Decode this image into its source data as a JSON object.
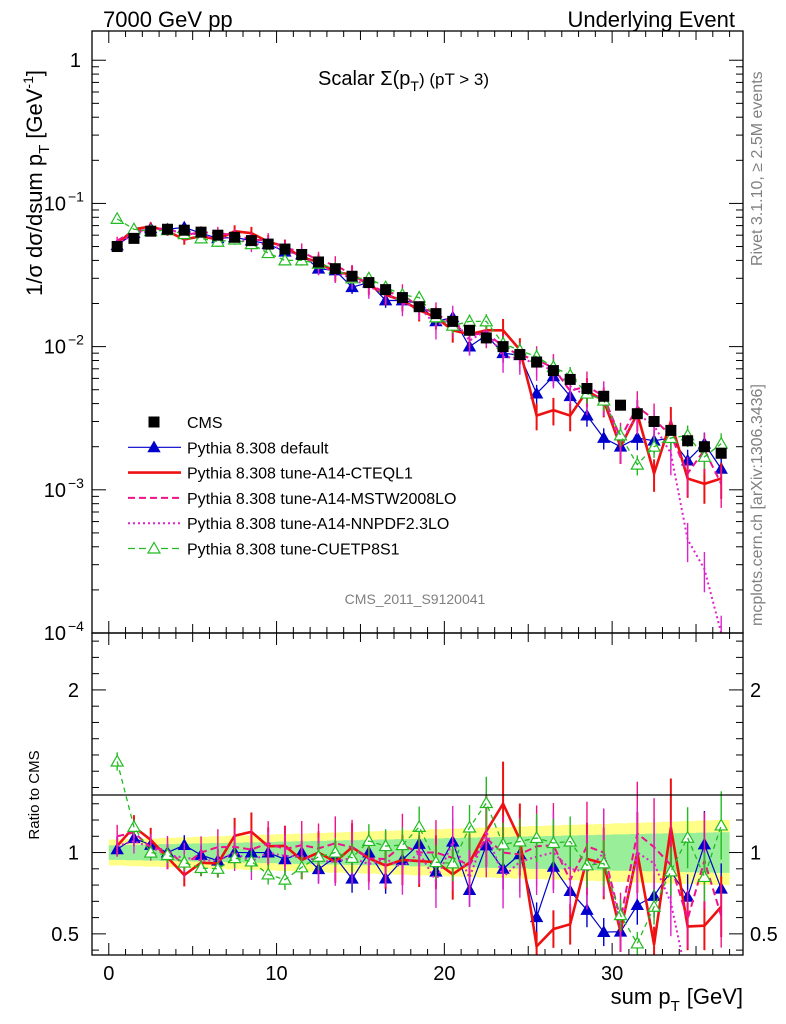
{
  "header": {
    "left": "7000 GeV pp",
    "right": "Underlying Event"
  },
  "side_text": {
    "rivet": "Rivet 3.1.10, ≥ 2.5M events",
    "mcplots": "mcplots.cern.ch [arXiv:1306.3436]"
  },
  "chart_data": {
    "type": "scatter",
    "title": "Scalar Σ(p",
    "title_sub": "T",
    "title_tail": ") (pT >  3)",
    "watermark": "CMS_2011_S9120041",
    "ylabel_main": "1/σ dσ/dsum p",
    "ylabel_main_sub": "T",
    "ylabel_main_unit": "[GeV",
    "ylabel_main_sup": "-1",
    "ylabel_ratio": "Ratio to CMS",
    "xlabel": "sum p",
    "xlabel_sub": "T",
    "xlabel_unit": "[GeV]",
    "xlim": [
      -1,
      37.8
    ],
    "ylim_main": [
      0.0001,
      1.6
    ],
    "ylim_ratio": [
      0.37,
      2.35
    ],
    "log_y_main": true,
    "x_ticks": [
      "0",
      "10",
      "20",
      "30"
    ],
    "y_ticks_main": [
      {
        "base": "1",
        "exp": ""
      },
      {
        "base": "10",
        "exp": "−1"
      },
      {
        "base": "10",
        "exp": "−2"
      },
      {
        "base": "10",
        "exp": "−3"
      },
      {
        "base": "10",
        "exp": "−4"
      }
    ],
    "y_ticks_ratio": [
      "2",
      "1",
      "0.5"
    ],
    "legend": [
      {
        "name": "CMS",
        "color": "#000000",
        "marker": "square",
        "line": "none"
      },
      {
        "name": "Pythia 8.308 default",
        "color": "#0000cc",
        "marker": "triangle",
        "line": "solid"
      },
      {
        "name": "Pythia 8.308 tune-A14-CTEQL1",
        "color": "#ee1111",
        "marker": "none",
        "line": "thick"
      },
      {
        "name": "Pythia 8.308 tune-A14-MSTW2008LO",
        "color": "#ee1188",
        "marker": "none",
        "line": "dashed"
      },
      {
        "name": "Pythia 8.308 tune-A14-NNPDF2.3LO",
        "color": "#dd22cc",
        "marker": "none",
        "line": "dotted"
      },
      {
        "name": "Pythia 8.308 tune-CUETP8S1",
        "color": "#22bb22",
        "marker": "open-triangle",
        "line": "dashed"
      }
    ],
    "x": [
      0.5,
      1.5,
      2.5,
      3.5,
      4.5,
      5.5,
      6.5,
      7.5,
      8.5,
      9.5,
      10.5,
      11.5,
      12.5,
      13.5,
      14.5,
      15.5,
      16.5,
      17.5,
      18.5,
      19.5,
      20.5,
      21.5,
      22.5,
      23.5,
      24.5,
      25.5,
      26.5,
      27.5,
      28.5,
      29.5,
      30.5,
      31.5,
      32.5,
      33.5,
      34.5,
      35.5,
      36.5
    ],
    "series": [
      {
        "name": "CMS",
        "values": [
          0.05,
          0.057,
          0.064,
          0.066,
          0.065,
          0.063,
          0.06,
          0.058,
          0.055,
          0.052,
          0.048,
          0.044,
          0.039,
          0.035,
          0.031,
          0.028,
          0.025,
          0.022,
          0.019,
          0.017,
          0.015,
          0.013,
          0.0115,
          0.01,
          0.0088,
          0.0078,
          0.0068,
          0.0059,
          0.0051,
          0.0045,
          0.0039,
          0.0034,
          0.003,
          0.0026,
          0.0022,
          0.002,
          0.0018
        ]
      },
      {
        "name": "Pythia 8.308 default",
        "values": [
          0.051,
          0.062,
          0.067,
          0.066,
          0.068,
          0.062,
          0.057,
          0.058,
          0.055,
          0.052,
          0.046,
          0.044,
          0.035,
          0.034,
          0.026,
          0.028,
          0.021,
          0.021,
          0.02,
          0.015,
          0.016,
          0.01,
          0.012,
          0.009,
          0.0087,
          0.0047,
          0.0062,
          0.0045,
          0.0033,
          0.0023,
          0.002,
          0.0023,
          0.0022,
          0.0023,
          0.0016,
          0.0021,
          0.0014
        ]
      },
      {
        "name": "Pythia 8.308 tune-A14-CTEQL1",
        "values": [
          0.052,
          0.066,
          0.069,
          0.064,
          0.056,
          0.059,
          0.056,
          0.064,
          0.062,
          0.054,
          0.05,
          0.042,
          0.039,
          0.033,
          0.032,
          0.027,
          0.023,
          0.021,
          0.018,
          0.016,
          0.013,
          0.0122,
          0.013,
          0.013,
          0.0095,
          0.0033,
          0.0036,
          0.0033,
          0.0049,
          0.0042,
          0.002,
          0.0034,
          0.0013,
          0.003,
          0.0012,
          0.0011,
          0.0012
        ]
      },
      {
        "name": "Pythia 8.308 tune-A14-MSTW2008LO",
        "values": [
          0.055,
          0.064,
          0.066,
          0.067,
          0.06,
          0.063,
          0.062,
          0.06,
          0.056,
          0.055,
          0.049,
          0.046,
          0.04,
          0.037,
          0.032,
          0.027,
          0.024,
          0.023,
          0.019,
          0.017,
          0.0145,
          0.012,
          0.0125,
          0.01,
          0.0087,
          0.0081,
          0.0071,
          0.0049,
          0.0053,
          0.0045,
          0.0023,
          0.0038,
          0.0031,
          0.0024,
          0.0013,
          0.0019,
          0.0011
        ]
      },
      {
        "name": "Pythia 8.308 tune-A14-NNPDF2.3LO",
        "values": [
          0.052,
          0.061,
          0.066,
          0.065,
          0.063,
          0.06,
          0.057,
          0.058,
          0.052,
          0.052,
          0.047,
          0.043,
          0.037,
          0.033,
          0.03,
          0.026,
          0.024,
          0.02,
          0.019,
          0.014,
          0.016,
          0.011,
          0.013,
          0.0085,
          0.0083,
          0.0076,
          0.0068,
          0.0053,
          0.0045,
          0.0045,
          0.0021,
          0.0034,
          0.0028,
          0.0018,
          0.00045,
          0.00028,
          0.0001
        ]
      },
      {
        "name": "Pythia 8.308 tune-CUETP8S1",
        "values": [
          0.078,
          0.066,
          0.064,
          0.065,
          0.061,
          0.057,
          0.054,
          0.056,
          0.052,
          0.045,
          0.04,
          0.04,
          0.038,
          0.035,
          0.03,
          0.03,
          0.026,
          0.023,
          0.022,
          0.016,
          0.014,
          0.015,
          0.015,
          0.0105,
          0.0094,
          0.0085,
          0.0072,
          0.0063,
          0.0047,
          0.0042,
          0.0024,
          0.0015,
          0.002,
          0.0023,
          0.0024,
          0.0017,
          0.0021
        ]
      }
    ]
  }
}
